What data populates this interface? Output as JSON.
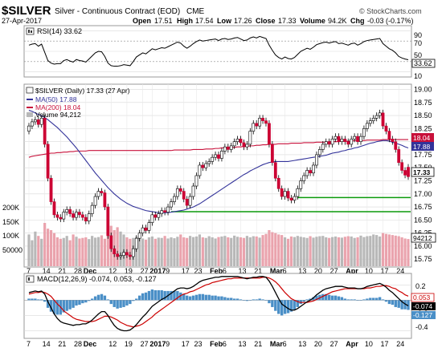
{
  "header": {
    "symbol": "$SILVER",
    "description": "Silver - Continuous Contract (EOD)",
    "exchange": "CME",
    "date": "27-Apr-2017",
    "watermark": "© StockCharts.com",
    "open_label": "Open",
    "open": "17.51",
    "high_label": "High",
    "high": "17.54",
    "low_label": "Low",
    "low": "17.26",
    "close_label": "Close",
    "close": "17.33",
    "volume_label": "Volume",
    "volume": "94.2K",
    "chg_label": "Chg",
    "chg": "-0.03 (-0.17%)"
  },
  "rsi_panel": {
    "legend": "RSI(14) 33.62",
    "y_ticks": [
      "90",
      "70",
      "50",
      "30",
      "10"
    ],
    "last_label": "33.62"
  },
  "price_panel": {
    "legend_title": "$SILVER (Daily) 17.33 (27 Apr)",
    "ma50_label": "MA(50) 17.88",
    "ma200_label": "MA(200) 18.04",
    "volume_label": "Volume 94,212",
    "y_ticks": [
      "19.00",
      "18.75",
      "18.50",
      "18.25",
      "18.00",
      "17.75",
      "17.50",
      "17.25",
      "17.00",
      "16.75",
      "16.50",
      "16.25",
      "16.00",
      "15.75"
    ],
    "vol_ticks": [
      "200K",
      "150K",
      "100K",
      "50000"
    ],
    "tags": {
      "ma200": "18.04",
      "ma50": "17.88",
      "close": "17.33",
      "volume": "94212"
    }
  },
  "macd_panel": {
    "legend": "MACD(12,26,9) -0.074, 0.053, -0.127",
    "y_ticks": [
      "0.2",
      "0.0",
      "-0.2",
      "-0.4"
    ],
    "tags": {
      "signal": "0.053",
      "macd": "-0.074",
      "hist": "-0.127"
    }
  },
  "x_axis": {
    "labels": [
      {
        "text": "7",
        "i": 0
      },
      {
        "text": "14",
        "i": 5
      },
      {
        "text": "21",
        "i": 10
      },
      {
        "text": "28",
        "i": 15
      },
      {
        "text": "Dec",
        "i": 18
      },
      {
        "text": "12",
        "i": 26
      },
      {
        "text": "19",
        "i": 31
      },
      {
        "text": "27",
        "i": 36
      },
      {
        "text": "2017",
        "i": 39
      },
      {
        "text": "9",
        "i": 44
      },
      {
        "text": "17",
        "i": 49
      },
      {
        "text": "23",
        "i": 53
      },
      {
        "text": "Feb",
        "i": 58
      },
      {
        "text": "6",
        "i": 62
      },
      {
        "text": "13",
        "i": 67
      },
      {
        "text": "21",
        "i": 72
      },
      {
        "text": "Mar",
        "i": 77
      },
      {
        "text": "6",
        "i": 81
      },
      {
        "text": "13",
        "i": 86
      },
      {
        "text": "20",
        "i": 91
      },
      {
        "text": "27",
        "i": 96
      },
      {
        "text": "Apr",
        "i": 101
      },
      {
        "text": "10",
        "i": 107
      },
      {
        "text": "17",
        "i": 112
      },
      {
        "text": "24",
        "i": 117
      }
    ]
  },
  "colors": {
    "up_candle": "#ffffff",
    "down_candle": "#cc0033",
    "outline": "#000000",
    "ma50": "#33339a",
    "ma200": "#c8103a",
    "support": "#0b9a0b",
    "volume_up": "#b8b8b8",
    "volume_down": "#eaa3ad",
    "macd_hist": "#4a8fc7",
    "macd_line": "#000000",
    "signal_line": "#cc0000",
    "rsi_line": "#000000",
    "panel_bg": "#ffffff",
    "grid": "#d9d9d9"
  },
  "chart_data": {
    "type": "candlestick",
    "title": "$SILVER Silver - Continuous Contract (EOD) CME",
    "x_range": [
      "2016-11-07",
      "2017-04-27"
    ],
    "price_ylim": [
      15.6,
      19.1
    ],
    "close": [
      18.3,
      18.38,
      18.42,
      18.33,
      18.45,
      17.95,
      17.3,
      16.85,
      16.6,
      16.55,
      16.52,
      16.65,
      16.7,
      16.62,
      16.55,
      16.65,
      16.6,
      16.55,
      16.48,
      16.62,
      16.78,
      16.95,
      17.05,
      17.02,
      16.75,
      16.2,
      15.95,
      15.85,
      15.8,
      15.82,
      15.88,
      15.83,
      15.8,
      15.95,
      16.15,
      16.25,
      16.35,
      16.3,
      16.45,
      16.6,
      16.55,
      16.62,
      16.68,
      16.65,
      16.75,
      16.85,
      16.95,
      17.1,
      17.05,
      16.9,
      16.78,
      16.95,
      17.15,
      17.35,
      17.55,
      17.5,
      17.58,
      17.62,
      17.7,
      17.75,
      17.68,
      17.82,
      17.9,
      17.85,
      17.92,
      18.0,
      18.05,
      17.98,
      17.9,
      17.95,
      18.2,
      18.35,
      18.3,
      18.45,
      18.4,
      18.35,
      17.95,
      17.6,
      17.3,
      17.1,
      16.95,
      17.05,
      16.92,
      16.88,
      16.95,
      17.1,
      17.25,
      17.35,
      17.45,
      17.4,
      17.55,
      17.75,
      17.85,
      17.95,
      18.0,
      17.95,
      18.05,
      18.1,
      18.0,
      18.05,
      18.0,
      17.95,
      18.05,
      18.1,
      18.0,
      18.1,
      18.25,
      18.35,
      18.4,
      18.45,
      18.5,
      18.55,
      18.3,
      18.2,
      18.05,
      18.0,
      17.85,
      17.6,
      17.45,
      17.36,
      17.33
    ],
    "open": [
      18.2,
      18.3,
      18.38,
      18.42,
      18.33,
      18.45,
      17.95,
      17.3,
      16.85,
      16.6,
      16.55,
      16.52,
      16.65,
      16.7,
      16.62,
      16.55,
      16.65,
      16.6,
      16.55,
      16.48,
      16.62,
      16.78,
      16.95,
      17.05,
      17.02,
      16.75,
      16.2,
      15.95,
      15.85,
      15.8,
      15.82,
      15.88,
      15.83,
      15.8,
      15.95,
      16.15,
      16.25,
      16.35,
      16.3,
      16.45,
      16.6,
      16.55,
      16.62,
      16.68,
      16.65,
      16.75,
      16.85,
      16.95,
      17.1,
      17.05,
      16.9,
      16.78,
      16.95,
      17.15,
      17.35,
      17.55,
      17.5,
      17.58,
      17.62,
      17.7,
      17.75,
      17.68,
      17.82,
      17.9,
      17.85,
      17.92,
      18.0,
      18.05,
      17.98,
      17.9,
      17.95,
      18.2,
      18.35,
      18.3,
      18.45,
      18.4,
      18.35,
      17.95,
      17.6,
      17.3,
      17.1,
      16.95,
      17.05,
      16.92,
      16.88,
      16.95,
      17.1,
      17.25,
      17.35,
      17.45,
      17.4,
      17.55,
      17.75,
      17.85,
      17.95,
      18.0,
      17.95,
      18.05,
      18.1,
      18.0,
      18.05,
      18.0,
      17.95,
      18.05,
      18.1,
      18.0,
      18.1,
      18.25,
      18.35,
      18.4,
      18.45,
      18.5,
      18.55,
      18.3,
      18.2,
      18.05,
      18.0,
      17.85,
      17.6,
      17.45,
      17.51
    ],
    "ma50": [
      18.6,
      18.58,
      18.55,
      18.52,
      18.5,
      18.46,
      18.42,
      18.37,
      18.32,
      18.27,
      18.21,
      18.15,
      18.09,
      18.02,
      17.95,
      17.88,
      17.8,
      17.72,
      17.64,
      17.56,
      17.48,
      17.4,
      17.33,
      17.26,
      17.19,
      17.12,
      17.06,
      17.0,
      16.95,
      16.9,
      16.86,
      16.82,
      16.79,
      16.76,
      16.74,
      16.72,
      16.7,
      16.68,
      16.67,
      16.66,
      16.65,
      16.64,
      16.64,
      16.64,
      16.64,
      16.65,
      16.66,
      16.67,
      16.68,
      16.69,
      16.71,
      16.73,
      16.75,
      16.78,
      16.81,
      16.85,
      16.89,
      16.93,
      16.97,
      17.01,
      17.05,
      17.09,
      17.13,
      17.17,
      17.21,
      17.25,
      17.29,
      17.33,
      17.37,
      17.4,
      17.44,
      17.47,
      17.5,
      17.53,
      17.56,
      17.58,
      17.6,
      17.61,
      17.62,
      17.62,
      17.62,
      17.62,
      17.62,
      17.63,
      17.64,
      17.65,
      17.66,
      17.67,
      17.68,
      17.69,
      17.7,
      17.71,
      17.72,
      17.73,
      17.74,
      17.76,
      17.78,
      17.79,
      17.8,
      17.82,
      17.83,
      17.85,
      17.86,
      17.88,
      17.89,
      17.91,
      17.93,
      17.95,
      17.97,
      17.98,
      18.0,
      18.01,
      18.02,
      18.02,
      18.01,
      17.99,
      17.97,
      17.95,
      17.93,
      17.9,
      17.88
    ],
    "ma200": [
      17.7,
      17.72,
      17.73,
      17.74,
      17.75,
      17.76,
      17.77,
      17.78,
      17.78,
      17.79,
      17.79,
      17.8,
      17.8,
      17.81,
      17.81,
      17.82,
      17.82,
      17.82,
      17.82,
      17.83,
      17.83,
      17.83,
      17.83,
      17.83,
      17.83,
      17.83,
      17.83,
      17.83,
      17.83,
      17.83,
      17.83,
      17.83,
      17.83,
      17.83,
      17.83,
      17.83,
      17.83,
      17.83,
      17.83,
      17.83,
      17.83,
      17.83,
      17.83,
      17.83,
      17.83,
      17.83,
      17.84,
      17.84,
      17.84,
      17.84,
      17.84,
      17.84,
      17.85,
      17.85,
      17.85,
      17.85,
      17.86,
      17.86,
      17.86,
      17.87,
      17.87,
      17.88,
      17.88,
      17.88,
      17.89,
      17.89,
      17.9,
      17.9,
      17.91,
      17.91,
      17.92,
      17.92,
      17.93,
      17.93,
      17.94,
      17.94,
      17.95,
      17.95,
      17.95,
      17.96,
      17.96,
      17.96,
      17.96,
      17.97,
      17.97,
      17.97,
      17.97,
      17.98,
      17.98,
      17.98,
      17.98,
      17.99,
      17.99,
      17.99,
      17.99,
      18.0,
      18.0,
      18.0,
      18.0,
      18.01,
      18.01,
      18.01,
      18.01,
      18.02,
      18.02,
      18.02,
      18.02,
      18.03,
      18.03,
      18.03,
      18.03,
      18.03,
      18.04,
      18.04,
      18.04,
      18.04,
      18.04,
      18.04,
      18.04,
      18.04,
      18.04
    ],
    "support_lines": [
      {
        "y": 16.93,
        "x_from_index": 85,
        "x_to_index": 120
      },
      {
        "y": 16.66,
        "x_from_index": 45,
        "x_to_index": 120
      }
    ],
    "volume": [
      110000,
      90000,
      120000,
      105000,
      95000,
      150000,
      130000,
      125000,
      115000,
      100000,
      95000,
      98000,
      105000,
      90000,
      110000,
      102000,
      96000,
      98000,
      100000,
      94000,
      105000,
      99000,
      101000,
      107000,
      95000,
      110000,
      140000,
      125000,
      135000,
      120000,
      110000,
      100000,
      95000,
      98000,
      102000,
      108000,
      96000,
      92000,
      100000,
      103000,
      95000,
      99000,
      98000,
      105000,
      96000,
      100000,
      97000,
      102000,
      110000,
      100000,
      98000,
      105000,
      101000,
      103000,
      110000,
      100000,
      98000,
      104000,
      100000,
      96000,
      101000,
      103000,
      105000,
      100000,
      98000,
      106000,
      102000,
      100000,
      98000,
      105000,
      100000,
      104000,
      103000,
      99000,
      108000,
      112000,
      125000,
      118000,
      115000,
      110000,
      108000,
      100000,
      95000,
      103000,
      101000,
      105000,
      102000,
      100000,
      98000,
      104000,
      99000,
      102000,
      104000,
      105000,
      100000,
      98000,
      101000,
      103000,
      100000,
      99000,
      102000,
      104000,
      103000,
      98000,
      100000,
      106000,
      101000,
      104000,
      105000,
      110000,
      108000,
      103000,
      115000,
      112000,
      110000,
      108000,
      106000,
      104000,
      100000,
      96000,
      94212
    ],
    "rsi": [
      62,
      64,
      65,
      60,
      64,
      48,
      32,
      27,
      25,
      26,
      26,
      32,
      34,
      31,
      29,
      34,
      32,
      31,
      29,
      35,
      41,
      47,
      50,
      49,
      40,
      27,
      22,
      21,
      21,
      22,
      24,
      23,
      22,
      30,
      39,
      43,
      47,
      45,
      50,
      55,
      53,
      55,
      57,
      56,
      59,
      62,
      65,
      68,
      66,
      60,
      56,
      60,
      65,
      69,
      72,
      70,
      71,
      72,
      73,
      74,
      71,
      74,
      75,
      73,
      74,
      76,
      77,
      74,
      71,
      72,
      76,
      78,
      76,
      79,
      77,
      75,
      62,
      52,
      43,
      38,
      35,
      39,
      36,
      35,
      38,
      44,
      50,
      53,
      56,
      54,
      58,
      63,
      65,
      67,
      68,
      66,
      68,
      69,
      65,
      66,
      64,
      62,
      65,
      66,
      62,
      65,
      69,
      71,
      72,
      73,
      74,
      75,
      65,
      60,
      55,
      52,
      47,
      40,
      37,
      35,
      33.62
    ],
    "macd": [
      0.1,
      0.11,
      0.12,
      0.11,
      0.12,
      0.08,
      -0.02,
      -0.1,
      -0.18,
      -0.24,
      -0.28,
      -0.3,
      -0.31,
      -0.32,
      -0.33,
      -0.32,
      -0.32,
      -0.31,
      -0.31,
      -0.29,
      -0.26,
      -0.22,
      -0.18,
      -0.15,
      -0.15,
      -0.2,
      -0.27,
      -0.33,
      -0.37,
      -0.39,
      -0.4,
      -0.4,
      -0.39,
      -0.36,
      -0.32,
      -0.27,
      -0.22,
      -0.18,
      -0.13,
      -0.08,
      -0.05,
      -0.02,
      0.01,
      0.03,
      0.06,
      0.09,
      0.12,
      0.15,
      0.16,
      0.16,
      0.15,
      0.16,
      0.18,
      0.21,
      0.24,
      0.26,
      0.27,
      0.28,
      0.29,
      0.3,
      0.3,
      0.31,
      0.31,
      0.31,
      0.31,
      0.31,
      0.31,
      0.3,
      0.29,
      0.28,
      0.29,
      0.3,
      0.3,
      0.31,
      0.31,
      0.3,
      0.25,
      0.18,
      0.1,
      0.02,
      -0.05,
      -0.08,
      -0.11,
      -0.13,
      -0.13,
      -0.11,
      -0.08,
      -0.05,
      -0.02,
      0.0,
      0.03,
      0.07,
      0.1,
      0.13,
      0.15,
      0.16,
      0.17,
      0.18,
      0.18,
      0.18,
      0.17,
      0.16,
      0.16,
      0.16,
      0.15,
      0.15,
      0.16,
      0.18,
      0.19,
      0.2,
      0.21,
      0.22,
      0.2,
      0.17,
      0.13,
      0.1,
      0.06,
      0.02,
      -0.02,
      -0.05,
      -0.074
    ],
    "signal": [
      0.08,
      0.09,
      0.1,
      0.1,
      0.11,
      0.1,
      0.08,
      0.05,
      0.0,
      -0.05,
      -0.09,
      -0.14,
      -0.17,
      -0.2,
      -0.23,
      -0.25,
      -0.26,
      -0.27,
      -0.28,
      -0.28,
      -0.28,
      -0.27,
      -0.25,
      -0.23,
      -0.21,
      -0.21,
      -0.22,
      -0.24,
      -0.26,
      -0.29,
      -0.31,
      -0.33,
      -0.34,
      -0.35,
      -0.34,
      -0.33,
      -0.31,
      -0.28,
      -0.25,
      -0.22,
      -0.18,
      -0.15,
      -0.12,
      -0.09,
      -0.06,
      -0.03,
      0.0,
      0.03,
      0.06,
      0.08,
      0.09,
      0.11,
      0.12,
      0.14,
      0.16,
      0.18,
      0.2,
      0.21,
      0.23,
      0.24,
      0.25,
      0.26,
      0.27,
      0.28,
      0.28,
      0.29,
      0.29,
      0.29,
      0.29,
      0.29,
      0.29,
      0.29,
      0.29,
      0.29,
      0.3,
      0.3,
      0.29,
      0.27,
      0.24,
      0.2,
      0.15,
      0.1,
      0.06,
      0.02,
      0.0,
      -0.02,
      -0.03,
      -0.03,
      -0.03,
      -0.02,
      -0.01,
      0.01,
      0.03,
      0.05,
      0.07,
      0.09,
      0.11,
      0.12,
      0.13,
      0.14,
      0.15,
      0.15,
      0.15,
      0.15,
      0.15,
      0.15,
      0.15,
      0.16,
      0.16,
      0.17,
      0.18,
      0.18,
      0.19,
      0.19,
      0.18,
      0.16,
      0.15,
      0.12,
      0.1,
      0.07,
      0.053
    ]
  }
}
